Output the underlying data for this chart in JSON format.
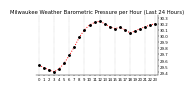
{
  "title": "Milwaukee Weather Barometric Pressure per Hour (Last 24 Hours)",
  "hours": [
    0,
    1,
    2,
    3,
    4,
    5,
    6,
    7,
    8,
    9,
    10,
    11,
    12,
    13,
    14,
    15,
    16,
    17,
    18,
    19,
    20,
    21,
    22,
    23
  ],
  "pressure": [
    29.52,
    29.48,
    29.44,
    29.41,
    29.46,
    29.55,
    29.68,
    29.82,
    29.98,
    30.1,
    30.18,
    30.22,
    30.24,
    30.2,
    30.15,
    30.12,
    30.14,
    30.1,
    30.05,
    30.08,
    30.12,
    30.15,
    30.18,
    30.2
  ],
  "line_color": "#ff0000",
  "dot_color": "#000000",
  "grid_color": "#999999",
  "bg_color": "#ffffff",
  "ylim": [
    29.35,
    30.35
  ],
  "yticks": [
    29.4,
    29.5,
    29.6,
    29.7,
    29.8,
    29.9,
    30.0,
    30.1,
    30.2,
    30.3
  ],
  "ytick_labels": [
    "29.4",
    "29.5",
    "29.6",
    "29.7",
    "29.8",
    "29.9",
    "30.0",
    "30.1",
    "30.2",
    "30.3"
  ],
  "xtick_labels": [
    "0",
    "1",
    "2",
    "3",
    "4",
    "5",
    "6",
    "7",
    "8",
    "9",
    "10",
    "11",
    "12",
    "13",
    "14",
    "15",
    "16",
    "17",
    "18",
    "19",
    "20",
    "21",
    "22",
    "23"
  ],
  "vgrid_positions": [
    0,
    3,
    6,
    9,
    12,
    15,
    18,
    21,
    23
  ],
  "title_fontsize": 3.8,
  "tick_fontsize": 2.8,
  "line_width": 0.7,
  "marker_size": 1.2
}
